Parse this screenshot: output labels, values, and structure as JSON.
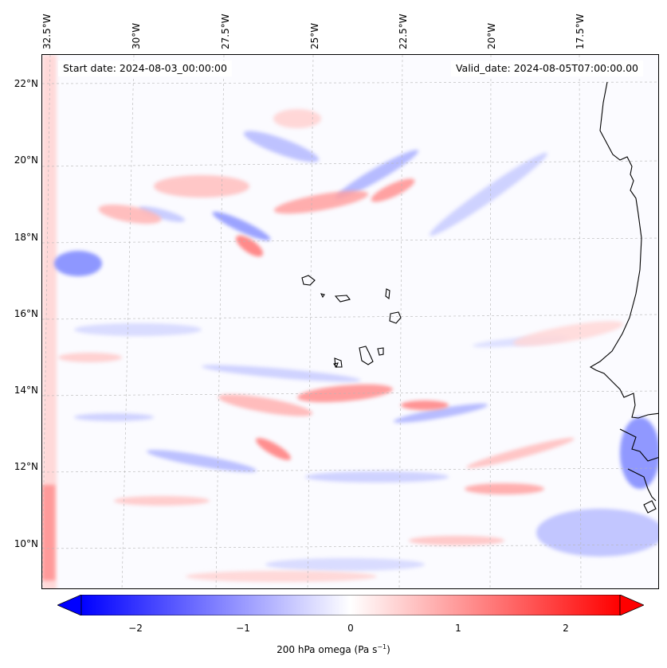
{
  "map": {
    "start_date": "Start date: 2024-08-03_00:00:00",
    "valid_date": "Valid_date: 2024-08-05T07:00:00.00",
    "longitude_labels": [
      "32.5°W",
      "30°W",
      "27.5°W",
      "25°W",
      "22.5°W",
      "20°W",
      "17.5°W"
    ],
    "latitude_labels": [
      "22°N",
      "20°N",
      "18°N",
      "16°N",
      "14°N",
      "12°N",
      "10°N"
    ],
    "field_colors": {
      "negative": "#0000ff",
      "neutral": "#ffffff",
      "positive": "#ff0000"
    },
    "coastline_color": "#000000"
  },
  "colorbar": {
    "ticks": [
      "−2",
      "−1",
      "0",
      "1",
      "2"
    ],
    "tick_values": [
      -2,
      -1,
      0,
      1,
      2
    ],
    "range": [
      -2.5,
      2.5
    ],
    "title": "200 hPa omega (Pa s",
    "title_exp": "−1",
    "title_end": ")"
  }
}
